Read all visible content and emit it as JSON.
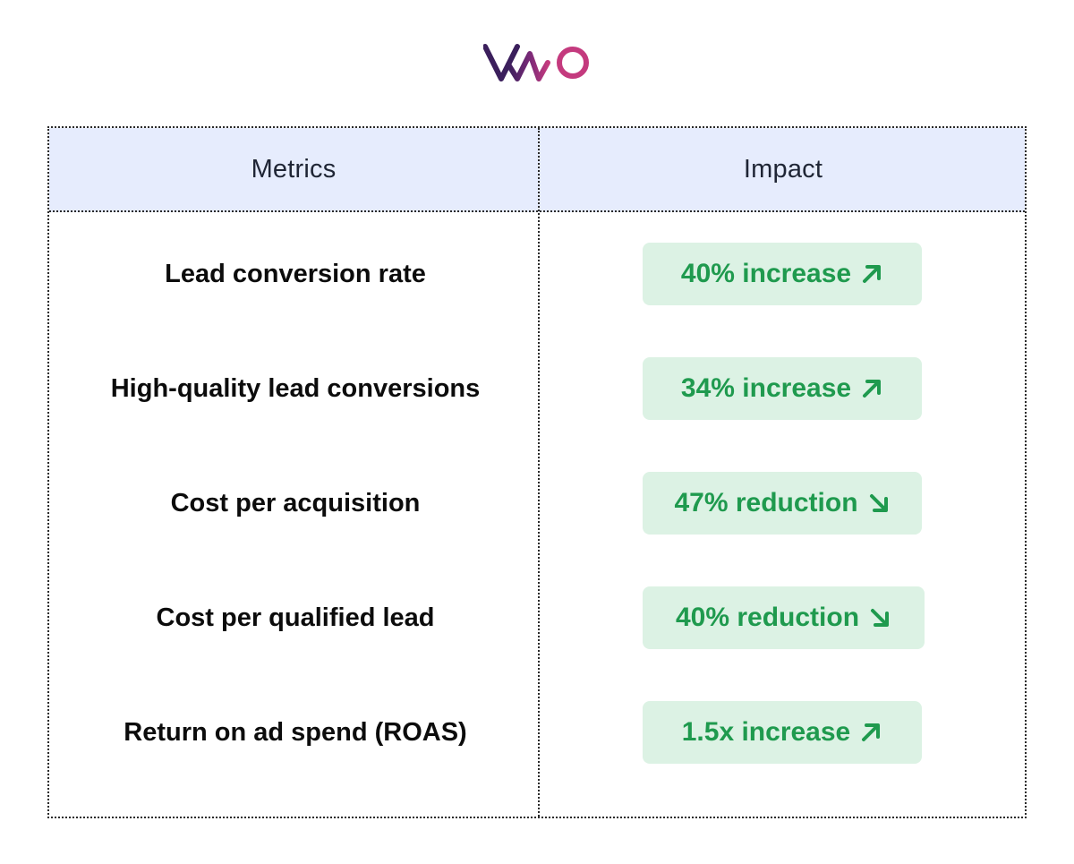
{
  "brand": {
    "name": "VWO",
    "colors": {
      "dark": "#3b1f5c",
      "mid": "#6a2a7a",
      "pink": "#c43a7e"
    }
  },
  "table": {
    "headers": {
      "metrics": "Metrics",
      "impact": "Impact"
    },
    "rows": [
      {
        "metric": "Lead conversion rate",
        "impact": "40% increase",
        "direction": "up"
      },
      {
        "metric": "High-quality lead conversions",
        "impact": "34% increase",
        "direction": "up"
      },
      {
        "metric": "Cost per acquisition",
        "impact": "47% reduction",
        "direction": "down"
      },
      {
        "metric": "Cost per qualified lead",
        "impact": "40% reduction",
        "direction": "down"
      },
      {
        "metric": "Return on ad spend (ROAS)",
        "impact": "1.5x increase",
        "direction": "up"
      }
    ]
  },
  "colors": {
    "header_bg": "#e6ecfd",
    "pill_bg": "#dcf2e4",
    "pill_text": "#1f9a4e"
  },
  "icons": {
    "up": "arrow-up-right-icon",
    "down": "arrow-down-right-icon"
  }
}
